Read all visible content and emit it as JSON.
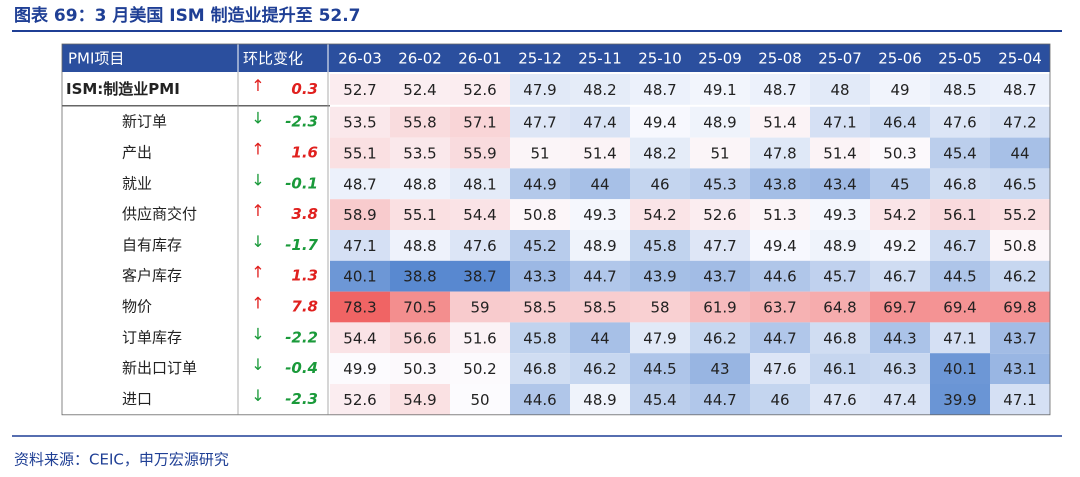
{
  "header": {
    "title": "图表 69：3 月美国 ISM 制造业提升至 52.7"
  },
  "table": {
    "columns": [
      "PMI项目",
      "环比变化",
      "26-03",
      "26-02",
      "26-01",
      "25-12",
      "25-11",
      "25-10",
      "25-09",
      "25-08",
      "25-07",
      "25-06",
      "25-05",
      "25-04"
    ],
    "rows": [
      {
        "label": "ISM:制造业PMI",
        "arrow": "↑",
        "change": 0.3,
        "values": [
          52.7,
          52.4,
          52.6,
          47.9,
          48.2,
          48.7,
          49.1,
          48.7,
          48,
          49,
          48.5,
          48.7
        ]
      },
      {
        "label": "新订单",
        "arrow": "↓",
        "change": -2.3,
        "values": [
          53.5,
          55.8,
          57.1,
          47.7,
          47.4,
          49.4,
          48.9,
          51.4,
          47.1,
          46.4,
          47.6,
          47.2
        ]
      },
      {
        "label": "产出",
        "arrow": "↑",
        "change": 1.6,
        "values": [
          55.1,
          53.5,
          55.9,
          51,
          51.4,
          48.2,
          51,
          47.8,
          51.4,
          50.3,
          45.4,
          44
        ]
      },
      {
        "label": "就业",
        "arrow": "↓",
        "change": -0.1,
        "values": [
          48.7,
          48.8,
          48.1,
          44.9,
          44,
          46,
          45.3,
          43.8,
          43.4,
          45,
          46.8,
          46.5
        ]
      },
      {
        "label": "供应商交付",
        "arrow": "↑",
        "change": 3.8,
        "values": [
          58.9,
          55.1,
          54.4,
          50.8,
          49.3,
          54.2,
          52.6,
          51.3,
          49.3,
          54.2,
          56.1,
          55.2
        ]
      },
      {
        "label": "自有库存",
        "arrow": "↓",
        "change": -1.7,
        "values": [
          47.1,
          48.8,
          47.6,
          45.2,
          48.9,
          45.8,
          47.7,
          49.4,
          48.9,
          49.2,
          46.7,
          50.8
        ]
      },
      {
        "label": "客户库存",
        "arrow": "↑",
        "change": 1.3,
        "values": [
          40.1,
          38.8,
          38.7,
          43.3,
          44.7,
          43.9,
          43.7,
          44.6,
          45.7,
          46.7,
          44.5,
          46.2
        ]
      },
      {
        "label": "物价",
        "arrow": "↑",
        "change": 7.8,
        "values": [
          78.3,
          70.5,
          59,
          58.5,
          58.5,
          58,
          61.9,
          63.7,
          64.8,
          69.7,
          69.4,
          69.8
        ]
      },
      {
        "label": "订单库存",
        "arrow": "↓",
        "change": -2.2,
        "values": [
          54.4,
          56.6,
          51.6,
          45.8,
          44,
          47.9,
          46.2,
          44.7,
          46.8,
          44.3,
          47.1,
          43.7
        ]
      },
      {
        "label": "新出口订单",
        "arrow": "↓",
        "change": -0.4,
        "values": [
          49.9,
          50.3,
          50.2,
          46.8,
          46.2,
          44.5,
          43,
          47.6,
          46.1,
          46.3,
          40.1,
          43.1
        ]
      },
      {
        "label": "进口",
        "arrow": "↓",
        "change": -2.3,
        "values": [
          52.6,
          54.9,
          50,
          44.6,
          48.9,
          45.4,
          44.7,
          46,
          47.6,
          47.4,
          39.9,
          47.1
        ]
      }
    ]
  },
  "footer": {
    "source": "资料来源：CEIC，申万宏源研究"
  }
}
